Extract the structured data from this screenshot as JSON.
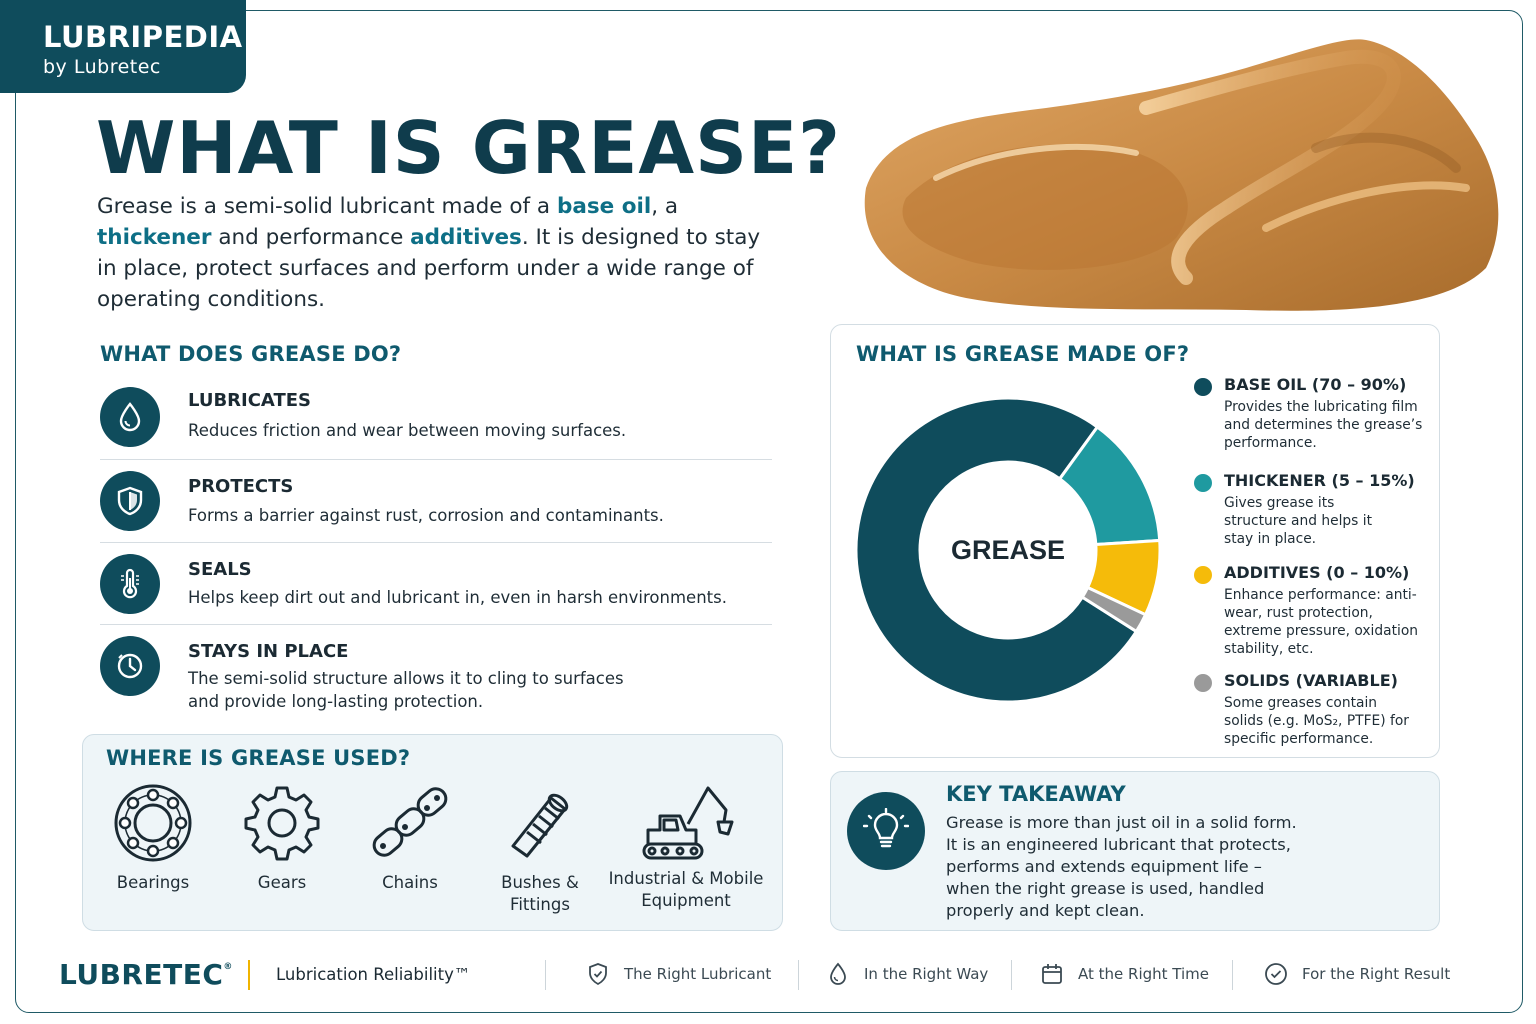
{
  "brand": {
    "name": "LUBRIPEDIA",
    "by": "by Lubretec"
  },
  "title": "WHAT IS GREASE?",
  "intro": {
    "p1": "Grease is a semi-solid lubricant made of a ",
    "hl1": "base oil",
    "p2": ", a ",
    "hl2": "thickener",
    "p3": " and performance ",
    "hl3": "additives",
    "p4": ". It is designed to stay in place, protect surfaces and perform under a wide range of operating conditions."
  },
  "functions": {
    "heading": "WHAT DOES GREASE DO?",
    "items": [
      {
        "title": "LUBRICATES",
        "desc": "Reduces friction and wear between moving surfaces.",
        "icon": "droplet-icon"
      },
      {
        "title": "PROTECTS",
        "desc": "Forms a barrier against rust, corrosion and contaminants.",
        "icon": "shield-icon"
      },
      {
        "title": "SEALS",
        "desc": "Helps keep dirt out and lubricant in, even in harsh environments.",
        "icon": "thermometer-icon"
      },
      {
        "title": "STAYS IN PLACE",
        "desc": "The semi-solid structure allows it to cling to surfaces and provide long-lasting protection.",
        "icon": "clock-icon"
      }
    ]
  },
  "usage": {
    "heading": "WHERE IS GREASE USED?",
    "items": [
      {
        "label": "Bearings",
        "icon": "bearing-icon"
      },
      {
        "label": "Gears",
        "icon": "gear-icon"
      },
      {
        "label": "Chains",
        "icon": "chain-icon"
      },
      {
        "label": "Bushes & Fittings",
        "icon": "bushing-icon"
      },
      {
        "label": "Industrial & Mobile Equipment",
        "icon": "excavator-icon"
      }
    ]
  },
  "composition": {
    "heading": "WHAT IS GREASE MADE OF?",
    "center_label": "GREASE",
    "legend": [
      {
        "title": "BASE OIL (70 – 90%)",
        "desc": "Provides the lubricating film and determines the grease’s performance.",
        "color": "#0f4c5c"
      },
      {
        "title": "THICKENER (5 – 15%)",
        "desc": "Gives grease its structure and helps it stay in place.",
        "color": "#1f9aa0"
      },
      {
        "title": "ADDITIVES (0 – 10%)",
        "desc": "Enhance performance: anti-wear, rust protection, extreme pressure, oxidation stability, etc.",
        "color": "#f5bb0a"
      },
      {
        "title": "SOLIDS (VARIABLE)",
        "desc": "Some greases contain solids (e.g. MoS₂, PTFE) for specific performance.",
        "color": "#9a9a9a"
      }
    ]
  },
  "chart_data": {
    "type": "pie",
    "categories": [
      "BASE OIL",
      "THICKENER",
      "ADDITIVES",
      "SOLIDS"
    ],
    "values": [
      76,
      14,
      8,
      2
    ],
    "colors": [
      "#0f4c5c",
      "#1f9aa0",
      "#f5bb0a",
      "#9a9a9a"
    ],
    "center_label": "GREASE"
  },
  "takeaway": {
    "heading": "KEY TAKEAWAY",
    "text": "Grease is more than just oil in a solid form. It is an engineered lubricant that protects, performs and extends equipment life – when the right grease is used, handled properly and kept clean.",
    "icon": "lightbulb-icon"
  },
  "footer": {
    "logo": "LUBRETEC",
    "logo_mark": "®",
    "tagline": "Lubrication Reliability™",
    "items": [
      {
        "label": "The Right Lubricant",
        "icon": "shield-check-icon"
      },
      {
        "label": "In the Right Way",
        "icon": "droplet-icon"
      },
      {
        "label": "At the Right Time",
        "icon": "calendar-icon"
      },
      {
        "label": "For the Right Result",
        "icon": "check-circle-icon"
      }
    ]
  }
}
